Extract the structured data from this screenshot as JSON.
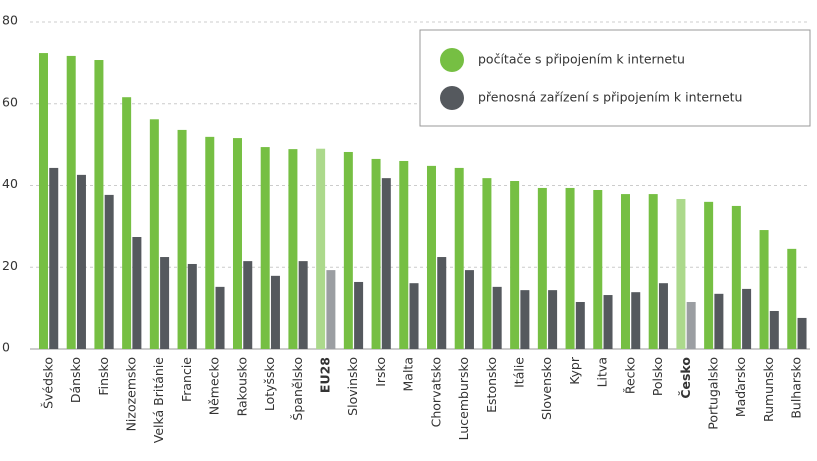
{
  "chart_data": {
    "type": "bar",
    "categories": [
      "Švédsko",
      "Dánsko",
      "Finsko",
      "Nizozemsko",
      "Velká Británie",
      "Francie",
      "Německo",
      "Rakousko",
      "Lotyšsko",
      "Španělsko",
      "EU28",
      "Slovinsko",
      "Irsko",
      "Malta",
      "Chorvatsko",
      "Lucembursko",
      "Estonsko",
      "Itálie",
      "Slovensko",
      "Kypr",
      "Litva",
      "Řecko",
      "Polsko",
      "Česko",
      "Portugalsko",
      "Maďarsko",
      "Rumunsko",
      "Bulharsko"
    ],
    "series": [
      {
        "name": "počítače s připojením k internetu",
        "color": "#76bf43",
        "colors": [
          "#76bf43",
          "#76bf43",
          "#76bf43",
          "#76bf43",
          "#76bf43",
          "#76bf43",
          "#76bf43",
          "#76bf43",
          "#76bf43",
          "#76bf43",
          "#acd98c",
          "#76bf43",
          "#76bf43",
          "#76bf43",
          "#76bf43",
          "#76bf43",
          "#76bf43",
          "#76bf43",
          "#76bf43",
          "#76bf43",
          "#76bf43",
          "#76bf43",
          "#76bf43",
          "#acd98c",
          "#76bf43",
          "#76bf43",
          "#76bf43",
          "#76bf43"
        ],
        "values": [
          72.4,
          71.7,
          70.7,
          61.6,
          56.2,
          53.6,
          51.9,
          51.6,
          49.4,
          48.9,
          49.0,
          48.2,
          46.5,
          46.0,
          44.8,
          44.3,
          41.8,
          41.1,
          39.4,
          39.4,
          38.9,
          37.9,
          37.9,
          36.7,
          36.0,
          35.0,
          29.1,
          24.5
        ]
      },
      {
        "name": "přenosná zařízení s připojením k internetu",
        "color": "#55595e",
        "colors": [
          "#55595e",
          "#55595e",
          "#55595e",
          "#55595e",
          "#55595e",
          "#55595e",
          "#55595e",
          "#55595e",
          "#55595e",
          "#55595e",
          "#9b9ea2",
          "#55595e",
          "#55595e",
          "#55595e",
          "#55595e",
          "#55595e",
          "#55595e",
          "#55595e",
          "#55595e",
          "#55595e",
          "#55595e",
          "#55595e",
          "#55595e",
          "#9b9ea2",
          "#55595e",
          "#55595e",
          "#55595e",
          "#55595e"
        ],
        "values": [
          44.3,
          42.6,
          37.7,
          27.4,
          22.5,
          20.8,
          15.2,
          21.5,
          17.9,
          21.5,
          19.3,
          16.4,
          41.8,
          16.1,
          22.5,
          19.3,
          15.2,
          14.4,
          14.4,
          11.5,
          13.2,
          13.9,
          16.1,
          11.5,
          13.5,
          14.7,
          9.3,
          7.6
        ]
      }
    ],
    "ylim": [
      0,
      80
    ],
    "yticks": [
      0,
      20,
      40,
      60,
      80
    ],
    "grid": true,
    "legend": "top-right"
  }
}
